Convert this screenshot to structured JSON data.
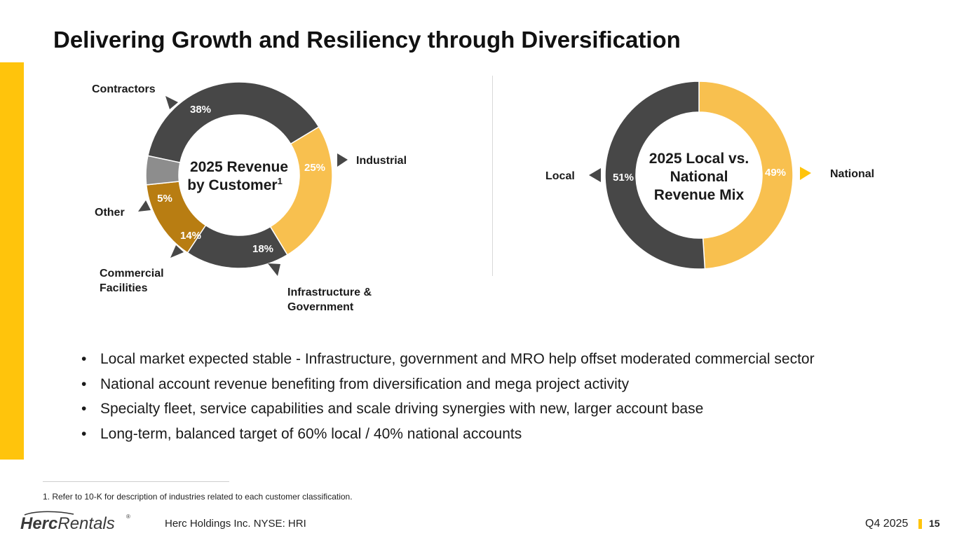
{
  "title": "Delivering Growth and Resiliency through Diversification",
  "colors": {
    "accent": "#FFC40C",
    "dark": "#474747",
    "light_gold": "#F8C04F",
    "bronze": "#B87D12",
    "grey": "#8D8D8D"
  },
  "chart_data": [
    {
      "type": "pie",
      "variant": "donut",
      "title_main": "2025 Revenue",
      "title_line2": "by Customer",
      "title_sup": "1",
      "slices": [
        {
          "name": "Contractors",
          "label": "38%",
          "value": 38,
          "color": "#474747"
        },
        {
          "name": "Industrial",
          "label": "25%",
          "value": 25,
          "color": "#F8C04F"
        },
        {
          "name": "Infrastructure & Government",
          "label_lines": [
            "Infrastructure &",
            "Government"
          ],
          "label": "18%",
          "value": 18,
          "color": "#474747"
        },
        {
          "name": "Commercial Facilities",
          "label_lines": [
            "Commercial",
            "Facilities"
          ],
          "label": "14%",
          "value": 14,
          "color": "#B87D12"
        },
        {
          "name": "Other",
          "label": "5%",
          "value": 5,
          "color": "#8D8D8D"
        }
      ]
    },
    {
      "type": "pie",
      "variant": "donut",
      "title_lines": [
        "2025 Local vs.",
        "National",
        "Revenue Mix"
      ],
      "slices": [
        {
          "name": "National",
          "label": "49%",
          "value": 49,
          "color": "#F8C04F"
        },
        {
          "name": "Local",
          "label": "51%",
          "value": 51,
          "color": "#474747"
        }
      ]
    }
  ],
  "bullets": [
    "Local market expected stable - Infrastructure, government and MRO help offset moderated commercial sector",
    "National account revenue benefiting from diversification and mega project activity",
    "Specialty fleet, service capabilities and scale driving synergies with new, larger account base",
    "Long-term, balanced target of 60% local / 40% national accounts"
  ],
  "bullet_glyph": "•",
  "footnote": "1. Refer to 10-K for description of industries related to each customer classification.",
  "footer": {
    "logo_bold": "Herc",
    "logo_light": "Rentals",
    "logo_reg": "®",
    "company": "Herc Holdings Inc.  NYSE: HRI",
    "quarter": "Q4 2025",
    "page": "15"
  }
}
